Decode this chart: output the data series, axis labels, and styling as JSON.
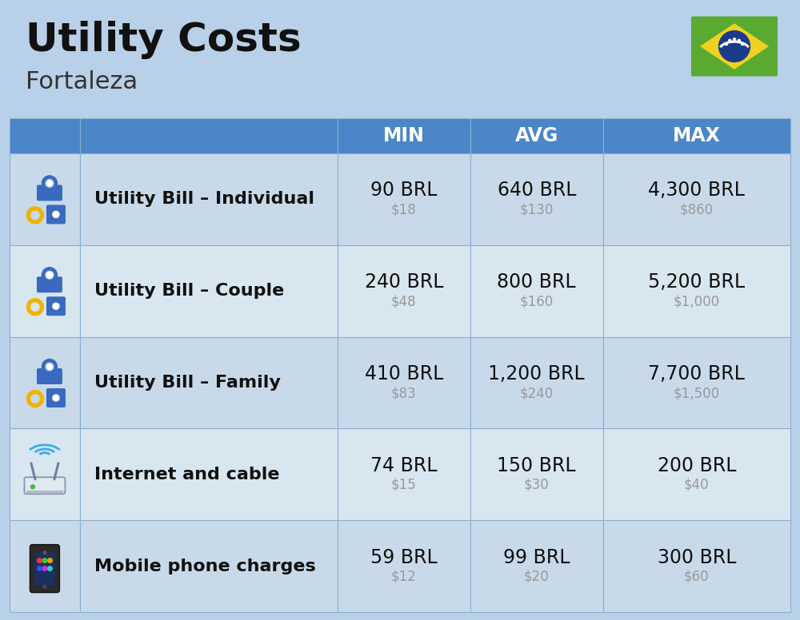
{
  "title": "Utility Costs",
  "subtitle": "Fortaleza",
  "background_color": "#b8d0e8",
  "header_bg_color": "#4a86c8",
  "header_text_color": "#ffffff",
  "row_color_odd": "#c8daea",
  "row_color_even": "#d8e6f0",
  "col_header_labels": [
    "MIN",
    "AVG",
    "MAX"
  ],
  "rows": [
    {
      "label": "Utility Bill – Individual",
      "icon": "utility",
      "min_brl": "90 BRL",
      "min_usd": "$18",
      "avg_brl": "640 BRL",
      "avg_usd": "$130",
      "max_brl": "4,300 BRL",
      "max_usd": "$860"
    },
    {
      "label": "Utility Bill – Couple",
      "icon": "utility",
      "min_brl": "240 BRL",
      "min_usd": "$48",
      "avg_brl": "800 BRL",
      "avg_usd": "$160",
      "max_brl": "5,200 BRL",
      "max_usd": "$1,000"
    },
    {
      "label": "Utility Bill – Family",
      "icon": "utility",
      "min_brl": "410 BRL",
      "min_usd": "$83",
      "avg_brl": "1,200 BRL",
      "avg_usd": "$240",
      "max_brl": "7,700 BRL",
      "max_usd": "$1,500"
    },
    {
      "label": "Internet and cable",
      "icon": "internet",
      "min_brl": "74 BRL",
      "min_usd": "$15",
      "avg_brl": "150 BRL",
      "avg_usd": "$30",
      "max_brl": "200 BRL",
      "max_usd": "$40"
    },
    {
      "label": "Mobile phone charges",
      "icon": "mobile",
      "min_brl": "59 BRL",
      "min_usd": "$12",
      "avg_brl": "99 BRL",
      "avg_usd": "$20",
      "max_brl": "300 BRL",
      "max_usd": "$60"
    }
  ],
  "brl_fontsize": 17,
  "usd_fontsize": 12,
  "label_fontsize": 16,
  "header_fontsize": 17,
  "title_fontsize": 36,
  "subtitle_fontsize": 22,
  "usd_color": "#999999",
  "border_color": "#8ab0d0",
  "title_color": "#111111",
  "subtitle_color": "#333333",
  "label_color": "#111111",
  "value_color": "#111111"
}
